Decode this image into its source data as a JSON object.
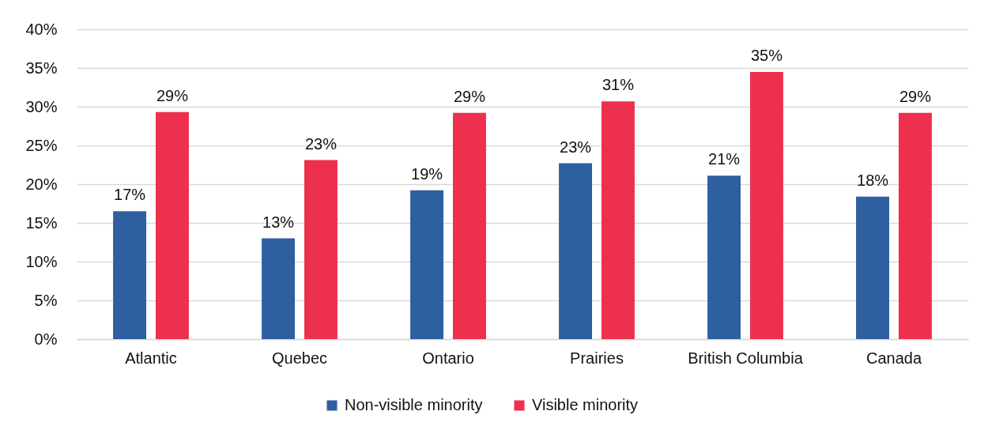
{
  "chart_data": {
    "type": "bar",
    "categories": [
      "Atlantic",
      "Quebec",
      "Ontario",
      "Prairies",
      "British Columbia",
      "Canada"
    ],
    "series": [
      {
        "name": "Non-visible minority",
        "color": "#2e5fa1",
        "values": [
          16.5,
          13.0,
          19.2,
          22.7,
          21.1,
          18.4
        ],
        "value_labels": [
          "17%",
          "13%",
          "19%",
          "23%",
          "21%",
          "18%"
        ]
      },
      {
        "name": "Visible minority",
        "color": "#ee304f",
        "values": [
          29.3,
          23.1,
          29.2,
          30.7,
          34.5,
          29.2
        ],
        "value_labels": [
          "29%",
          "23%",
          "29%",
          "31%",
          "35%",
          "29%"
        ]
      }
    ],
    "ylim": [
      0,
      40
    ],
    "yticks": [
      {
        "value": 0,
        "label": "0%"
      },
      {
        "value": 5,
        "label": "5%"
      },
      {
        "value": 10,
        "label": "10%"
      },
      {
        "value": 15,
        "label": "15%"
      },
      {
        "value": 20,
        "label": "20%"
      },
      {
        "value": 25,
        "label": "25%"
      },
      {
        "value": 30,
        "label": "30%"
      },
      {
        "value": 35,
        "label": "35%"
      },
      {
        "value": 40,
        "label": "40%"
      }
    ],
    "grid": "y",
    "legend": "bottom"
  }
}
